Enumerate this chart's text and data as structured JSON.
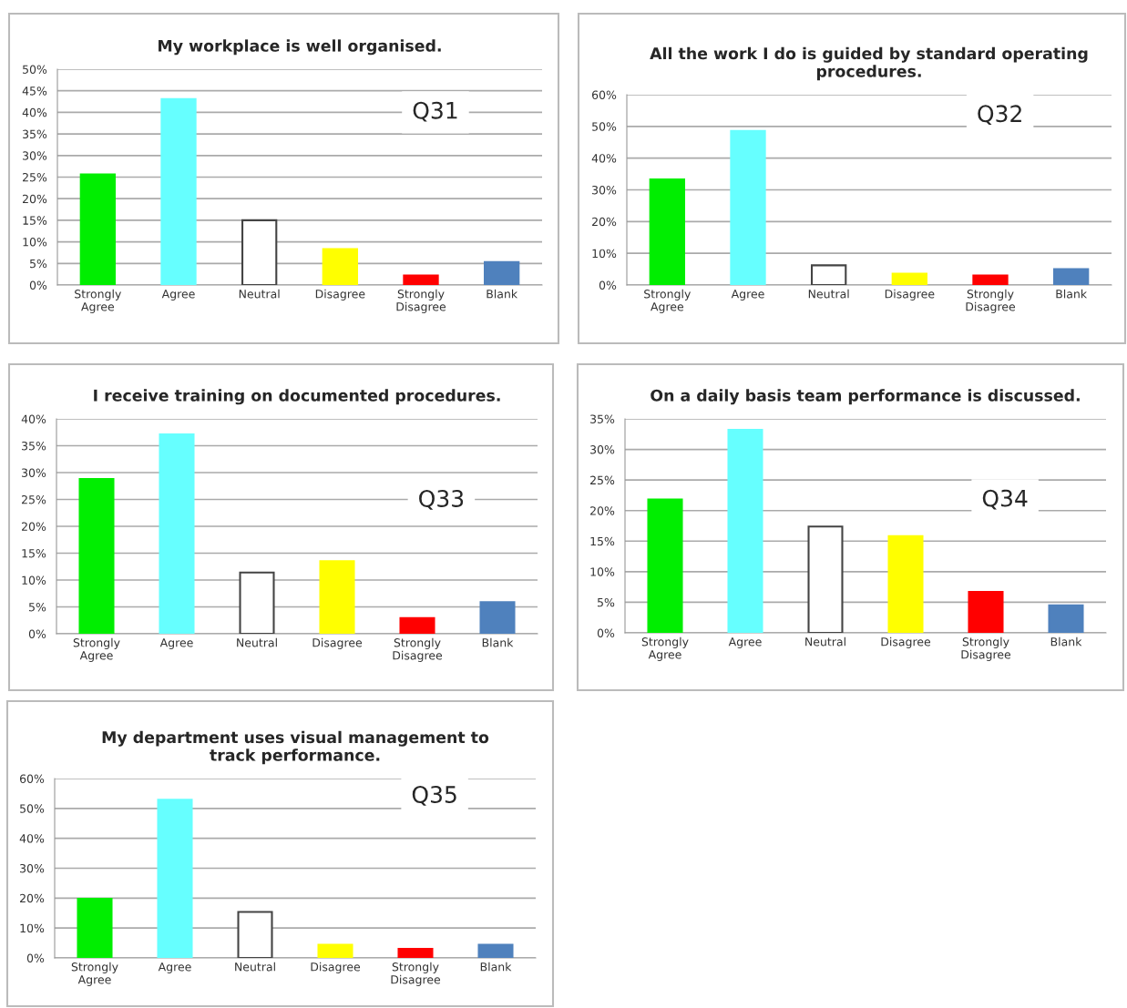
{
  "chart_data": [
    {
      "type": "bar",
      "title": "My workplace is well organised.",
      "categories": [
        "Strongly\nAgree",
        "Agree",
        "Neutral",
        "Disagree",
        "Strongly\nDisagree",
        "Blank"
      ],
      "values": [
        25.6,
        43.1,
        15.0,
        8.3,
        2.2,
        5.3
      ],
      "colors": [
        "#00ee00",
        "#66ffff",
        "#ffffff",
        "#ffff00",
        "#ff0000",
        "#4f81bd"
      ],
      "ylim": [
        0,
        50
      ],
      "yticks": [
        {
          "value": 0,
          "label": "0%"
        },
        {
          "value": 5,
          "label": "5%"
        },
        {
          "value": 10,
          "label": "10%"
        },
        {
          "value": 15,
          "label": "15%"
        },
        {
          "value": 20,
          "label": "20%"
        },
        {
          "value": 25,
          "label": "25%"
        },
        {
          "value": 30,
          "label": "30%"
        },
        {
          "value": 35,
          "label": "35%"
        },
        {
          "value": 40,
          "label": "40%"
        },
        {
          "value": 45,
          "label": "45%"
        },
        {
          "value": 50,
          "label": "50%"
        }
      ],
      "grid": "y",
      "annotations": [
        "Q31"
      ]
    },
    {
      "type": "bar",
      "title": "All the work I do is guided by standard operating\nprocedures.",
      "categories": [
        "Strongly\nAgree",
        "Agree",
        "Neutral",
        "Disagree",
        "Strongly\nDisagree",
        "Blank"
      ],
      "values": [
        33.3,
        48.6,
        6.2,
        3.6,
        3.0,
        5.0
      ],
      "colors": [
        "#00ee00",
        "#66ffff",
        "#ffffff",
        "#ffff00",
        "#ff0000",
        "#4f81bd"
      ],
      "ylim": [
        0,
        60
      ],
      "yticks": [
        {
          "value": 0,
          "label": "0%"
        },
        {
          "value": 10,
          "label": "10%"
        },
        {
          "value": 20,
          "label": "20%"
        },
        {
          "value": 30,
          "label": "30%"
        },
        {
          "value": 40,
          "label": "40%"
        },
        {
          "value": 50,
          "label": "50%"
        },
        {
          "value": 60,
          "label": "60%"
        }
      ],
      "grid": "y",
      "annotations": [
        "Q32"
      ]
    },
    {
      "type": "bar",
      "title": "I receive training on documented procedures.",
      "categories": [
        "Strongly\nAgree",
        "Agree",
        "Neutral",
        "Disagree",
        "Strongly\nDisagree",
        "Blank"
      ],
      "values": [
        28.8,
        37.1,
        11.4,
        13.5,
        2.9,
        5.9
      ],
      "colors": [
        "#00ee00",
        "#66ffff",
        "#ffffff",
        "#ffff00",
        "#ff0000",
        "#4f81bd"
      ],
      "ylim": [
        0,
        40
      ],
      "yticks": [
        {
          "value": 0,
          "label": "0%"
        },
        {
          "value": 5,
          "label": "5%"
        },
        {
          "value": 10,
          "label": "10%"
        },
        {
          "value": 15,
          "label": "15%"
        },
        {
          "value": 20,
          "label": "20%"
        },
        {
          "value": 25,
          "label": "25%"
        },
        {
          "value": 30,
          "label": "30%"
        },
        {
          "value": 35,
          "label": "35%"
        },
        {
          "value": 40,
          "label": "40%"
        }
      ],
      "grid": "y",
      "annotations": [
        "Q33"
      ]
    },
    {
      "type": "bar",
      "title": "On a daily basis team performance is discussed.",
      "categories": [
        "Strongly\nAgree",
        "Agree",
        "Neutral",
        "Disagree",
        "Strongly\nDisagree",
        "Blank"
      ],
      "values": [
        21.8,
        33.2,
        17.4,
        15.8,
        6.7,
        4.5
      ],
      "colors": [
        "#00ee00",
        "#66ffff",
        "#ffffff",
        "#ffff00",
        "#ff0000",
        "#4f81bd"
      ],
      "ylim": [
        0,
        35
      ],
      "yticks": [
        {
          "value": 0,
          "label": "0%"
        },
        {
          "value": 5,
          "label": "5%"
        },
        {
          "value": 10,
          "label": "10%"
        },
        {
          "value": 15,
          "label": "15%"
        },
        {
          "value": 20,
          "label": "20%"
        },
        {
          "value": 25,
          "label": "25%"
        },
        {
          "value": 30,
          "label": "30%"
        },
        {
          "value": 35,
          "label": "35%"
        }
      ],
      "grid": "y",
      "annotations": [
        "Q34"
      ]
    },
    {
      "type": "bar",
      "title": "My department uses visual management to\ntrack performance.",
      "categories": [
        "Strongly\nAgree",
        "Agree",
        "Neutral",
        "Disagree",
        "Strongly\nDisagree",
        "Blank"
      ],
      "values": [
        19.8,
        52.9,
        15.4,
        4.4,
        3.0,
        4.4
      ],
      "colors": [
        "#00ee00",
        "#66ffff",
        "#ffffff",
        "#ffff00",
        "#ff0000",
        "#4f81bd"
      ],
      "ylim": [
        0,
        60
      ],
      "yticks": [
        {
          "value": 0,
          "label": "0%"
        },
        {
          "value": 10,
          "label": "10%"
        },
        {
          "value": 20,
          "label": "20%"
        },
        {
          "value": 30,
          "label": "30%"
        },
        {
          "value": 40,
          "label": "40%"
        },
        {
          "value": 50,
          "label": "50%"
        },
        {
          "value": 60,
          "label": "60%"
        }
      ],
      "grid": "y",
      "annotations": [
        "Q35"
      ]
    }
  ]
}
